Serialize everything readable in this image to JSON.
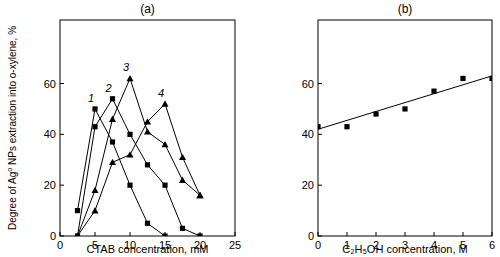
{
  "chart_data": [
    {
      "type": "line",
      "title": "(a)",
      "x_label": "CTAB concentration, mM",
      "y_label": "Degree of Ag⁰ NPs extraction into o-xylene, %",
      "xlim": [
        0,
        25
      ],
      "xticks": [
        0,
        5,
        10,
        15,
        20,
        25
      ],
      "ylim": [
        0,
        85
      ],
      "yticks": [
        0,
        20,
        40,
        60
      ],
      "color": "#000000",
      "series": [
        {
          "name": "1",
          "marker": "square",
          "x": [
            2.5,
            5,
            7.5,
            10,
            12.5,
            15
          ],
          "values": [
            10,
            50,
            37,
            20,
            5,
            0
          ]
        },
        {
          "name": "2",
          "marker": "square",
          "x": [
            2.5,
            5,
            7.5,
            10,
            12.5,
            15,
            17.5,
            20
          ],
          "values": [
            0,
            43,
            54,
            40,
            28,
            20,
            3,
            0
          ]
        },
        {
          "name": "3",
          "marker": "triangle",
          "x": [
            2.5,
            5,
            7.5,
            10,
            12.5,
            15,
            17.5,
            20
          ],
          "values": [
            0,
            18,
            46,
            62,
            41,
            36,
            22,
            16
          ]
        },
        {
          "name": "4",
          "marker": "triangle",
          "x": [
            2.5,
            5,
            7.5,
            10,
            12.5,
            15,
            17.5,
            20
          ],
          "values": [
            0,
            10,
            29,
            32,
            45,
            52,
            31,
            16
          ]
        }
      ]
    },
    {
      "type": "scatter",
      "title": "(b)",
      "x_label": "C₂H₅OH concentration, M",
      "xlim": [
        0,
        6
      ],
      "xticks": [
        0,
        1,
        2,
        3,
        4,
        5,
        6
      ],
      "ylim": [
        0,
        85
      ],
      "yticks": [
        0,
        20,
        40,
        60
      ],
      "color": "#000000",
      "series": [
        {
          "type": "scatter",
          "marker": "square",
          "x": [
            0,
            1,
            2,
            3,
            4,
            5,
            6
          ],
          "values": [
            43,
            43,
            48,
            50,
            57,
            62,
            62
          ]
        },
        {
          "type": "line",
          "x": [
            0,
            6
          ],
          "values": [
            42,
            63
          ]
        }
      ]
    }
  ]
}
